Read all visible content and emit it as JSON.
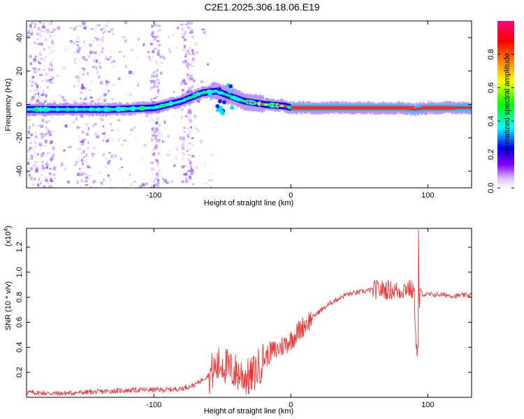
{
  "title": "C2E1.2025.306.18.06.E19",
  "chart_data": [
    {
      "type": "heatmap",
      "xlabel": "Height of straight line (km)",
      "ylabel": "Frequency (Hz)",
      "xlim": [
        -193,
        132
      ],
      "ylim": [
        -50,
        50
      ],
      "x_ticks": [
        -100,
        0,
        100
      ],
      "y_ticks": [
        -40,
        -20,
        0,
        20,
        40
      ],
      "colorbar": {
        "label": "Normalized spectral amplitude",
        "range": [
          0,
          1
        ],
        "ticks": [
          "0.0",
          "0.2",
          "0.4",
          "0.6",
          "0.8"
        ],
        "tick_values": [
          0,
          0.2,
          0.4,
          0.6,
          0.8
        ],
        "colors": [
          "#ffffff",
          "#8000ff",
          "#0000ff",
          "#00ffff",
          "#00ff00",
          "#ffff00",
          "#ff8000",
          "#ff0000",
          "#ff0080"
        ]
      },
      "ridge": {
        "description_values": [
          [
            -193,
            -3
          ],
          [
            -160,
            -3
          ],
          [
            -130,
            -3
          ],
          [
            -100,
            -2
          ],
          [
            -80,
            2
          ],
          [
            -65,
            7
          ],
          [
            -55,
            8
          ],
          [
            -45,
            5
          ],
          [
            -35,
            2
          ],
          [
            -20,
            0
          ],
          [
            -5,
            -1
          ],
          [
            0,
            -2
          ],
          [
            50,
            -2
          ],
          [
            80,
            -2
          ],
          [
            90,
            -3
          ],
          [
            100,
            -2
          ],
          [
            132,
            -2
          ]
        ]
      }
    },
    {
      "type": "line",
      "xlabel": "Height of straight line (km)",
      "ylabel": "SNR (10 * v/v)",
      "scale_label": "(x10",
      "scale_exp": "4",
      "scale_close": ")",
      "xlim": [
        -193,
        132
      ],
      "ylim": [
        0,
        1.35
      ],
      "x_ticks": [
        -100,
        0,
        100
      ],
      "y_ticks": [
        0.2,
        0.4,
        0.6,
        0.8,
        1.0,
        1.2
      ],
      "y_tick_labels": [
        "0.2",
        "0.4",
        "0.6",
        "0.8",
        "1.0",
        "1.2"
      ],
      "color": "#ee3333",
      "series": [
        {
          "x": [
            -193,
            -170,
            -150,
            -130,
            -110,
            -90,
            -80,
            -70,
            -60,
            -50,
            -45,
            -40,
            -35,
            -30,
            -25,
            -20,
            -15,
            -10,
            -5,
            0,
            5,
            10,
            20,
            30,
            40,
            50,
            60,
            70,
            80,
            85,
            90,
            92,
            94,
            97,
            100,
            110,
            120,
            132
          ],
          "y": [
            0.04,
            0.03,
            0.04,
            0.05,
            0.06,
            0.06,
            0.07,
            0.1,
            0.18,
            0.28,
            0.22,
            0.2,
            0.18,
            0.15,
            0.22,
            0.3,
            0.36,
            0.38,
            0.42,
            0.46,
            0.52,
            0.58,
            0.68,
            0.76,
            0.82,
            0.84,
            0.86,
            0.86,
            0.85,
            0.88,
            0.84,
            0.35,
            0.86,
            0.82,
            0.82,
            0.82,
            0.81,
            0.82
          ]
        }
      ]
    }
  ]
}
